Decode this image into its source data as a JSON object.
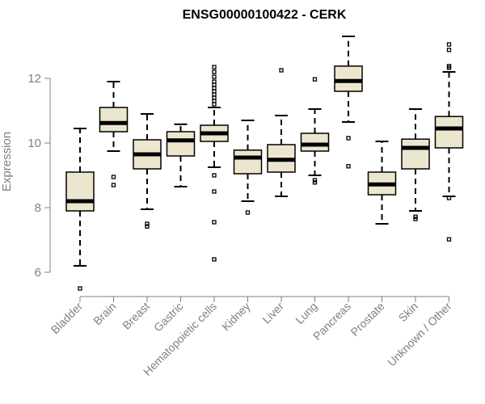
{
  "chart_data": {
    "type": "boxplot",
    "title": "ENSG00000100422 - CERK",
    "xlabel": "",
    "ylabel": "Expression",
    "ylim": [
      5.3,
      13.6
    ],
    "yticks": [
      6,
      8,
      10,
      12
    ],
    "grid": false,
    "box_fill": "#ede6cf",
    "categories": [
      "Bladder",
      "Brain",
      "Breast",
      "Gastric",
      "Hematopoietic cells",
      "Kidney",
      "Liver",
      "Lung",
      "Pancreas",
      "Prostate",
      "Skin",
      "Unknown / Other"
    ],
    "boxes": [
      {
        "name": "Bladder",
        "whisker_low": 6.2,
        "q1": 7.9,
        "median": 8.2,
        "q3": 9.1,
        "whisker_high": 10.45,
        "outliers": [
          5.5
        ]
      },
      {
        "name": "Brain",
        "whisker_low": 9.75,
        "q1": 10.35,
        "median": 10.62,
        "q3": 11.1,
        "whisker_high": 11.9,
        "outliers": [
          8.95,
          8.7
        ]
      },
      {
        "name": "Breast",
        "whisker_low": 7.95,
        "q1": 9.2,
        "median": 9.65,
        "q3": 10.1,
        "whisker_high": 10.9,
        "outliers": [
          7.5,
          7.42
        ]
      },
      {
        "name": "Gastric",
        "whisker_low": 8.65,
        "q1": 9.6,
        "median": 10.08,
        "q3": 10.35,
        "whisker_high": 10.58,
        "outliers": []
      },
      {
        "name": "Hematopoietic cells",
        "whisker_low": 9.25,
        "q1": 10.05,
        "median": 10.3,
        "q3": 10.55,
        "whisker_high": 11.1,
        "outliers": [
          12.35,
          12.2,
          12.05,
          11.9,
          11.8,
          11.7,
          11.6,
          11.5,
          11.4,
          11.3,
          11.2,
          9.0,
          8.5,
          7.55,
          6.4
        ]
      },
      {
        "name": "Kidney",
        "whisker_low": 8.2,
        "q1": 9.05,
        "median": 9.55,
        "q3": 9.78,
        "whisker_high": 10.7,
        "outliers": [
          7.85
        ]
      },
      {
        "name": "Liver",
        "whisker_low": 8.35,
        "q1": 9.1,
        "median": 9.48,
        "q3": 9.95,
        "whisker_high": 10.85,
        "outliers": [
          12.25
        ]
      },
      {
        "name": "Lung",
        "whisker_low": 9.0,
        "q1": 9.75,
        "median": 9.95,
        "q3": 10.3,
        "whisker_high": 11.05,
        "outliers": [
          11.97,
          8.85,
          8.78
        ]
      },
      {
        "name": "Pancreas",
        "whisker_low": 10.65,
        "q1": 11.6,
        "median": 11.92,
        "q3": 12.38,
        "whisker_high": 13.3,
        "outliers": [
          10.15,
          9.28
        ]
      },
      {
        "name": "Prostate",
        "whisker_low": 7.5,
        "q1": 8.4,
        "median": 8.72,
        "q3": 9.1,
        "whisker_high": 10.05,
        "outliers": []
      },
      {
        "name": "Skin",
        "whisker_low": 7.9,
        "q1": 9.2,
        "median": 9.85,
        "q3": 10.12,
        "whisker_high": 11.05,
        "outliers": [
          7.72,
          7.65
        ]
      },
      {
        "name": "Unknown / Other",
        "whisker_low": 8.35,
        "q1": 9.85,
        "median": 10.45,
        "q3": 10.82,
        "whisker_high": 12.2,
        "outliers": [
          13.05,
          12.88,
          12.38,
          12.33,
          8.3,
          7.02
        ]
      }
    ]
  }
}
